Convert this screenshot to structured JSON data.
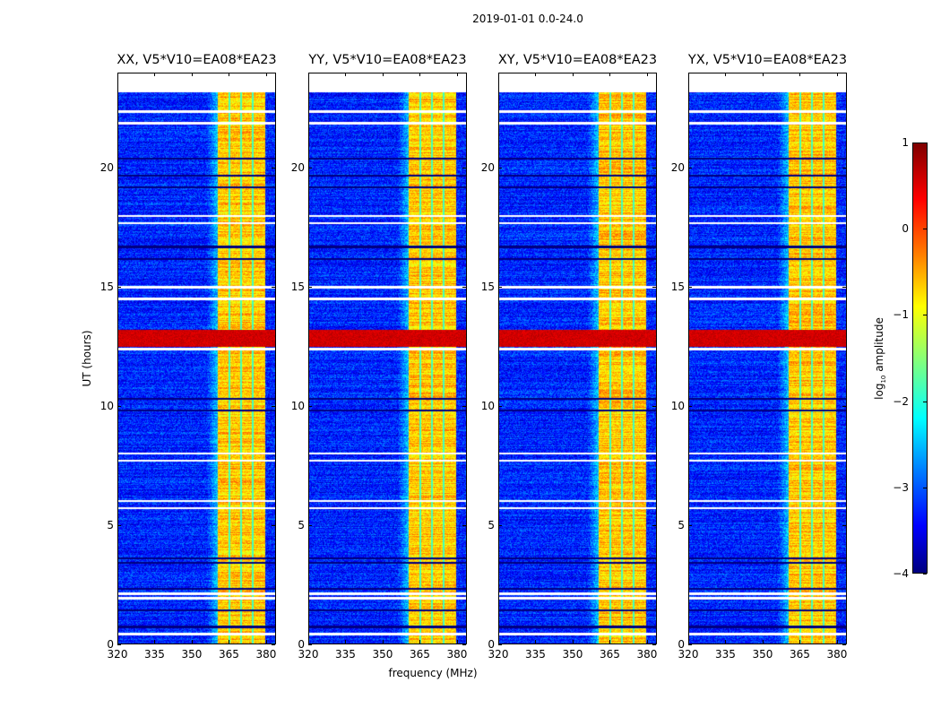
{
  "chart_data": {
    "type": "heatmap",
    "title": "2019-01-01 0.0-24.0",
    "xlabel": "frequency (MHz)",
    "ylabel": "UT (hours)",
    "xlim": [
      320,
      384
    ],
    "ylim": [
      0,
      24
    ],
    "xticks": [
      "320",
      "335",
      "350",
      "365",
      "380"
    ],
    "xtick_values": [
      320,
      335,
      350,
      365,
      380
    ],
    "yticks": [
      "0",
      "5",
      "10",
      "15",
      "20"
    ],
    "ytick_values": [
      0,
      5,
      10,
      15,
      20
    ],
    "panels": [
      {
        "title": "XX, V5*V10=EA08*EA23"
      },
      {
        "title": "YY, V5*V10=EA08*EA23"
      },
      {
        "title": "XY, V5*V10=EA08*EA23"
      },
      {
        "title": "YX, V5*V10=EA08*EA23"
      }
    ],
    "colorbar": {
      "label_prefix": "log",
      "label_sub": "10",
      "label_suffix": " amplitude",
      "range": [
        -4,
        1
      ],
      "ticks": [
        "1",
        "0",
        "−1",
        "−2",
        "−3",
        "−4"
      ],
      "tick_values": [
        1,
        0,
        -1,
        -2,
        -3,
        -4
      ],
      "colormap": "jet"
    },
    "features": {
      "background_log_amp": -3.2,
      "rfi_band_mhz": [
        360.5,
        380
      ],
      "rfi_band_log_amp": -0.6,
      "rfi_gaps_mhz": [
        365.5,
        370,
        375
      ],
      "strong_event_ut": [
        12.5,
        13.2
      ],
      "strong_event_log_amp": 0.6,
      "data_end_ut": 23.2,
      "blank_rows_ut": [
        21.9,
        22.4,
        18.0,
        17.7,
        15.0,
        14.5,
        12.4,
        8.0,
        7.7,
        6.0,
        5.7,
        2.1,
        1.9,
        0.4
      ],
      "flagged_rows_ut": [
        20.4,
        19.7,
        19.2,
        16.7,
        16.2,
        10.3,
        9.8,
        3.6,
        3.4,
        2.3,
        1.4,
        0.7
      ]
    }
  }
}
